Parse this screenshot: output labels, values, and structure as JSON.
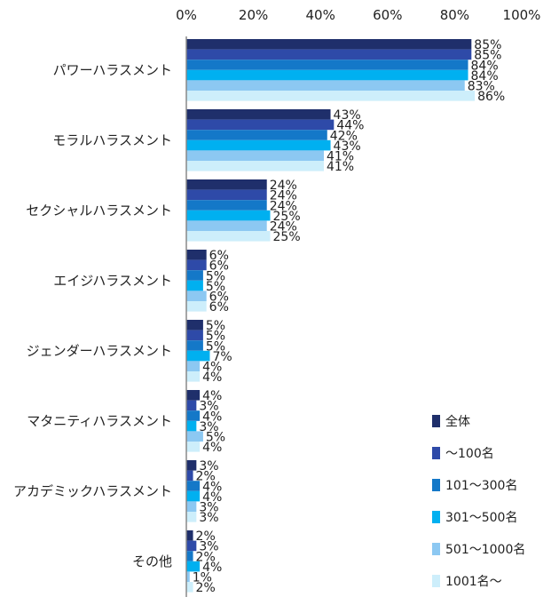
{
  "chart_data": {
    "type": "bar",
    "orientation": "horizontal",
    "x_ticks": [
      "0%",
      "20%",
      "40%",
      "60%",
      "80%",
      "100%"
    ],
    "xlim": [
      0,
      100
    ],
    "categories": [
      "パワーハラスメント",
      "モラルハラスメント",
      "セクシャルハラスメント",
      "エイジハラスメント",
      "ジェンダーハラスメント",
      "マタニティハラスメント",
      "アカデミックハラスメント",
      "その他"
    ],
    "series": [
      {
        "name": "全体",
        "color": "#1f2f6b",
        "values": [
          85,
          43,
          24,
          6,
          5,
          4,
          3,
          2
        ],
        "labels": [
          "85%",
          "43%",
          "24%",
          "6%",
          "5%",
          "4%",
          "3%",
          "2%"
        ]
      },
      {
        "name": "～100名",
        "color": "#2e4aa8",
        "values": [
          85,
          44,
          24,
          6,
          5,
          3,
          2,
          3
        ],
        "labels": [
          "85%",
          "44%",
          "24%",
          "6%",
          "5%",
          "3%",
          "2%",
          "3%"
        ]
      },
      {
        "name": "101～300名",
        "color": "#1478c8",
        "values": [
          84,
          42,
          24,
          5,
          5,
          4,
          4,
          2
        ],
        "labels": [
          "84%",
          "42%",
          "24%",
          "5%",
          "5%",
          "4%",
          "4%",
          "2%"
        ]
      },
      {
        "name": "301～500名",
        "color": "#00b0f0",
        "values": [
          84,
          43,
          25,
          5,
          7,
          3,
          4,
          4
        ],
        "labels": [
          "84%",
          "43%",
          "25%",
          "5%",
          "7%",
          "3%",
          "4%",
          "4%"
        ]
      },
      {
        "name": "501～1000名",
        "color": "#8cc8f2",
        "values": [
          83,
          41,
          24,
          6,
          4,
          5,
          3,
          1
        ],
        "labels": [
          "83%",
          "41%",
          "24%",
          "6%",
          "4%",
          "5%",
          "3%",
          "1%"
        ]
      },
      {
        "name": "1001名～",
        "color": "#cdeefb",
        "values": [
          86,
          41,
          25,
          6,
          4,
          4,
          3,
          2
        ],
        "labels": [
          "86%",
          "41%",
          "25%",
          "6%",
          "4%",
          "4%",
          "3%",
          "2%"
        ]
      }
    ],
    "grid": false,
    "legend_position": "bottom-right"
  }
}
